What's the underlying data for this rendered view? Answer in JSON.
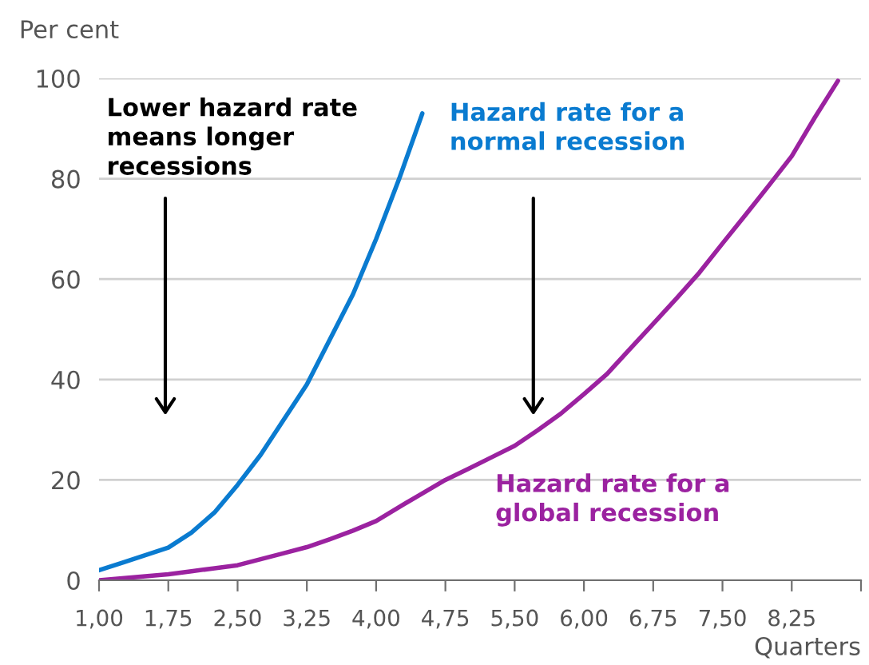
{
  "chart_data": {
    "type": "line",
    "ylabel": "Per cent",
    "xlabel": "Quarters",
    "categories": [
      "1,00",
      null,
      null,
      "1,75",
      null,
      null,
      "2,50",
      null,
      null,
      "3,25",
      null,
      null,
      "4,00",
      null,
      null,
      "4,75",
      null,
      null,
      "5,50",
      null,
      null,
      "6,00",
      null,
      null,
      "6,75",
      null,
      null,
      "7,50",
      null,
      null,
      "8,25",
      null,
      null,
      null
    ],
    "ylim": [
      0,
      100
    ],
    "yticks": [
      0,
      20,
      40,
      60,
      80,
      100
    ],
    "grid": "y",
    "legend": false,
    "marker": "none",
    "line_style": "solid",
    "series": [
      {
        "name": "Hazard rate for a\nnormal recession",
        "color": "#0a7bd0",
        "values": [
          2,
          3.5,
          5,
          6.5,
          9.5,
          13.5,
          19,
          25,
          32,
          39,
          48,
          57,
          68,
          80,
          93,
          null,
          null,
          null,
          null,
          null,
          null,
          null,
          null,
          null,
          null,
          null,
          null,
          null,
          null,
          null,
          null,
          null,
          null,
          null
        ]
      },
      {
        "name": "Hazard rate for a\nglobal recession",
        "color": "#9b22a0",
        "values": [
          0,
          0.4,
          0.8,
          1.2,
          1.8,
          2.4,
          3,
          4.2,
          5.4,
          6.6,
          8.2,
          9.9,
          11.8,
          14.6,
          17.3,
          20,
          22.2,
          24.5,
          26.8,
          29.9,
          33.2,
          37.1,
          41.1,
          46.1,
          51.1,
          56.1,
          61.3,
          67.1,
          72.8,
          78.6,
          84.5,
          92.2,
          99.5,
          null
        ]
      }
    ],
    "annotations": [
      "Lower hazard rate\nmeans longer\nrecessions"
    ]
  }
}
